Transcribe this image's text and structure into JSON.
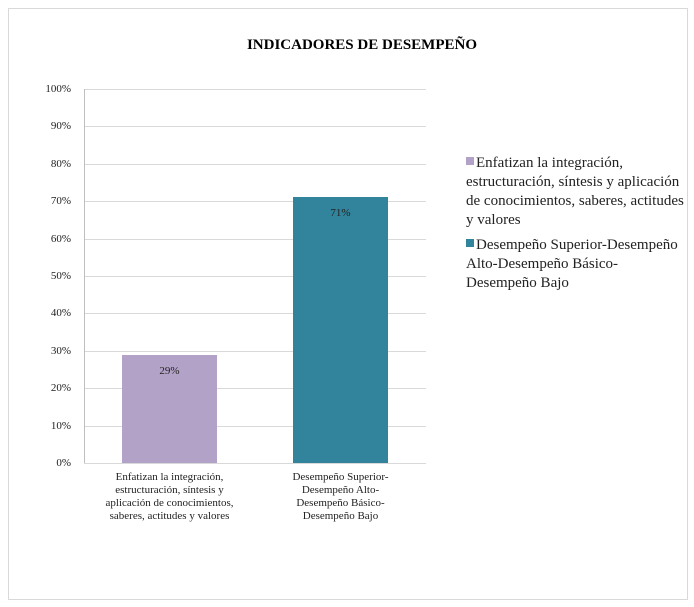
{
  "chart_data": {
    "type": "bar",
    "title": "INDICADORES DE DESEMPEÑO",
    "categories": [
      "Enfatizan la integración, estructuración, síntesis y aplicación de conocimientos, saberes, actitudes y valores",
      "Desempeño Superior-Desempeño Alto-Desempeño Básico-Desempeño Bajo"
    ],
    "values": [
      29,
      71
    ],
    "value_labels": [
      "29%",
      "71%"
    ],
    "colors": [
      "#b3a2c7",
      "#31849b"
    ],
    "ylim": [
      0,
      100
    ],
    "yticks": [
      {
        "value": 0,
        "label": "0%"
      },
      {
        "value": 10,
        "label": "10%"
      },
      {
        "value": 20,
        "label": "20%"
      },
      {
        "value": 30,
        "label": "30%"
      },
      {
        "value": 40,
        "label": "40%"
      },
      {
        "value": 50,
        "label": "50%"
      },
      {
        "value": 60,
        "label": "60%"
      },
      {
        "value": 70,
        "label": "70%"
      },
      {
        "value": 80,
        "label": "80%"
      },
      {
        "value": 90,
        "label": "90%"
      },
      {
        "value": 100,
        "label": "100%"
      }
    ],
    "grid": true,
    "legend": "right"
  }
}
